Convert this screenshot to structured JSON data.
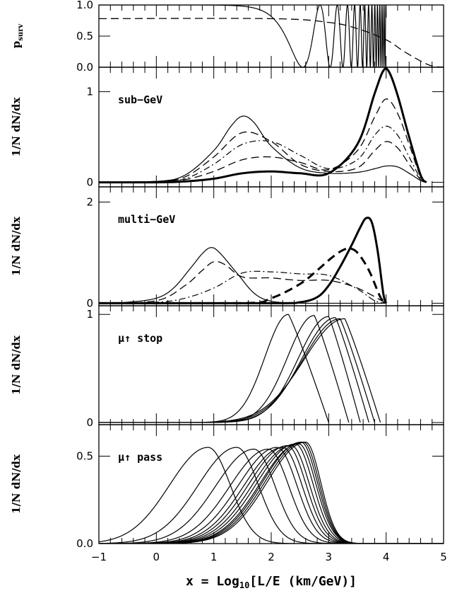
{
  "chart_data": {
    "type": "line",
    "xlabel": "x = Log10[L/E (km/GeV)]",
    "xlabel_main": "x = Log",
    "xlabel_sub": "10",
    "xlabel_tail": "[L/E (km/GeV)]",
    "xlim": [
      -1,
      5
    ],
    "x_ticks": [
      -1,
      0,
      1,
      2,
      3,
      4,
      5
    ],
    "x_tick_labels": [
      "−1",
      "0",
      "1",
      "2",
      "3",
      "4",
      "5"
    ],
    "panels": [
      {
        "id": "psurv",
        "ylabel_main": "p",
        "ylabel_sub": "surv",
        "label": "",
        "ylim": [
          0,
          1
        ],
        "y_ticks": [
          0,
          0.5,
          1
        ],
        "y_tick_labels": [
          "0.0",
          "0.5",
          "1.0"
        ],
        "series": [
          {
            "style": "solid",
            "formula": "osc"
          },
          {
            "style": "dashed",
            "x": [
              -1,
              2.0,
              3.0,
              3.5,
              4.0,
              4.3,
              4.6,
              4.8,
              5.0
            ],
            "y": [
              0.78,
              0.78,
              0.72,
              0.62,
              0.44,
              0.26,
              0.1,
              0.02,
              0.0
            ]
          }
        ]
      },
      {
        "id": "sub-gev",
        "ylabel_main": "1/N dN/dx",
        "label": "sub−GeV",
        "ylim": [
          -0.05,
          1.27
        ],
        "y_ticks": [
          0,
          1
        ],
        "y_tick_labels": [
          "0",
          "1"
        ],
        "series": [
          {
            "style": "solid",
            "x": [
              -1,
              0,
              0.5,
              1.0,
              1.3,
              1.5,
              1.7,
              2.0,
              2.5,
              3.0,
              3.5,
              3.8,
              4.0,
              4.2,
              4.4,
              4.6,
              4.7
            ],
            "y": [
              0,
              0.01,
              0.08,
              0.35,
              0.62,
              0.73,
              0.66,
              0.4,
              0.16,
              0.1,
              0.11,
              0.15,
              0.18,
              0.17,
              0.1,
              0.02,
              0
            ]
          },
          {
            "style": "dashed",
            "x": [
              -1,
              0,
              0.5,
              1.0,
              1.5,
              2.0,
              2.5,
              3.0,
              3.5,
              3.8,
              4.0,
              4.2,
              4.4,
              4.6,
              4.7
            ],
            "y": [
              0,
              0.01,
              0.06,
              0.28,
              0.55,
              0.45,
              0.2,
              0.12,
              0.16,
              0.35,
              0.45,
              0.38,
              0.2,
              0.03,
              0
            ]
          },
          {
            "style": "dashdot",
            "x": [
              -1,
              0,
              0.5,
              1.0,
              1.5,
              2.0,
              2.5,
              3.0,
              3.5,
              3.8,
              4.0,
              4.2,
              4.4,
              4.6,
              4.7
            ],
            "y": [
              0,
              0.01,
              0.04,
              0.2,
              0.42,
              0.45,
              0.3,
              0.15,
              0.25,
              0.52,
              0.62,
              0.52,
              0.28,
              0.04,
              0
            ]
          },
          {
            "style": "dashed",
            "x": [
              -1,
              0,
              0.5,
              1.0,
              1.5,
              2.0,
              2.5,
              3.0,
              3.5,
              3.8,
              4.0,
              4.2,
              4.4,
              4.6,
              4.7
            ],
            "y": [
              0,
              0.01,
              0.03,
              0.12,
              0.25,
              0.28,
              0.22,
              0.14,
              0.35,
              0.72,
              0.92,
              0.76,
              0.42,
              0.06,
              0
            ]
          },
          {
            "style": "bold",
            "x": [
              -1,
              0,
              0.5,
              1.0,
              1.5,
              2.0,
              2.5,
              3.0,
              3.5,
              3.8,
              3.95,
              4.05,
              4.2,
              4.4,
              4.6,
              4.7
            ],
            "y": [
              0,
              0.0,
              0.01,
              0.04,
              0.1,
              0.12,
              0.1,
              0.1,
              0.42,
              0.98,
              1.23,
              1.22,
              0.96,
              0.5,
              0.08,
              0
            ]
          }
        ]
      },
      {
        "id": "multi-gev",
        "ylabel_main": "1/N dN/dx",
        "label": "multi−GeV",
        "ylim": [
          -0.05,
          2.3
        ],
        "y_ticks": [
          0,
          2
        ],
        "y_tick_labels": [
          "0",
          "2"
        ],
        "series": [
          {
            "style": "solid",
            "x": [
              -1,
              -0.5,
              0,
              0.3,
              0.6,
              0.8,
              0.95,
              1.1,
              1.4,
              1.7,
              2.0,
              2.5,
              3.0,
              4.0
            ],
            "y": [
              0,
              0.02,
              0.1,
              0.3,
              0.7,
              0.98,
              1.1,
              1.0,
              0.6,
              0.2,
              0.04,
              0,
              0,
              0
            ]
          },
          {
            "style": "dashed",
            "x": [
              -1,
              0,
              0.5,
              0.8,
              1.0,
              1.2,
              1.5,
              2.0,
              2.5,
              3.0,
              3.5,
              4.0
            ],
            "y": [
              0,
              0.05,
              0.35,
              0.65,
              0.82,
              0.76,
              0.52,
              0.5,
              0.45,
              0.45,
              0.3,
              0
            ]
          },
          {
            "style": "dashdot",
            "x": [
              -1,
              0,
              0.5,
              1.0,
              1.5,
              2.0,
              2.5,
              3.0,
              3.5,
              3.8,
              4.0
            ],
            "y": [
              0,
              0.02,
              0.1,
              0.3,
              0.6,
              0.62,
              0.58,
              0.55,
              0.28,
              0.05,
              0
            ]
          },
          {
            "style": "bolddashed",
            "x": [
              -1,
              1.5,
              2.0,
              2.5,
              2.8,
              3.0,
              3.2,
              3.35,
              3.5,
              3.7,
              3.9,
              4.0
            ],
            "y": [
              0,
              0,
              0.1,
              0.38,
              0.65,
              0.85,
              1.02,
              1.08,
              1.0,
              0.65,
              0.12,
              0
            ]
          },
          {
            "style": "bold",
            "x": [
              -1,
              2.0,
              2.5,
              2.8,
              3.0,
              3.2,
              3.4,
              3.55,
              3.65,
              3.75,
              3.85,
              3.95,
              4.0
            ],
            "y": [
              0,
              0,
              0.02,
              0.12,
              0.35,
              0.72,
              1.15,
              1.5,
              1.68,
              1.6,
              1.05,
              0.2,
              0
            ]
          }
        ]
      },
      {
        "id": "mu-stop",
        "ylabel_main": "1/N dN/dx",
        "label": "μ↑ stop",
        "ylim": [
          -0.02,
          1.08
        ],
        "y_ticks": [
          0,
          1
        ],
        "y_tick_labels": [
          "0",
          "1"
        ],
        "series_family": {
          "peaks": [
            2.3,
            2.75,
            3.0,
            3.12,
            3.2,
            3.28
          ],
          "ends": [
            3.0,
            3.35,
            3.55,
            3.7,
            3.8,
            3.9
          ],
          "heights": [
            1.0,
            0.99,
            0.98,
            0.97,
            0.96,
            0.96
          ]
        }
      },
      {
        "id": "mu-pass",
        "ylabel_main": "1/N dN/dx",
        "label": "μ↑ pass",
        "ylim": [
          0,
          0.68
        ],
        "y_ticks": [
          0,
          0.5
        ],
        "y_tick_labels": [
          "0.0",
          "0.5"
        ],
        "series_family": {
          "peaks": [
            0.9,
            1.4,
            1.7,
            1.95,
            2.1,
            2.2,
            2.28,
            2.35,
            2.42,
            2.48,
            2.52,
            2.56,
            2.6
          ],
          "heights": [
            0.55,
            0.55,
            0.54,
            0.54,
            0.55,
            0.55,
            0.56,
            0.56,
            0.57,
            0.57,
            0.58,
            0.58,
            0.58
          ]
        }
      }
    ]
  }
}
